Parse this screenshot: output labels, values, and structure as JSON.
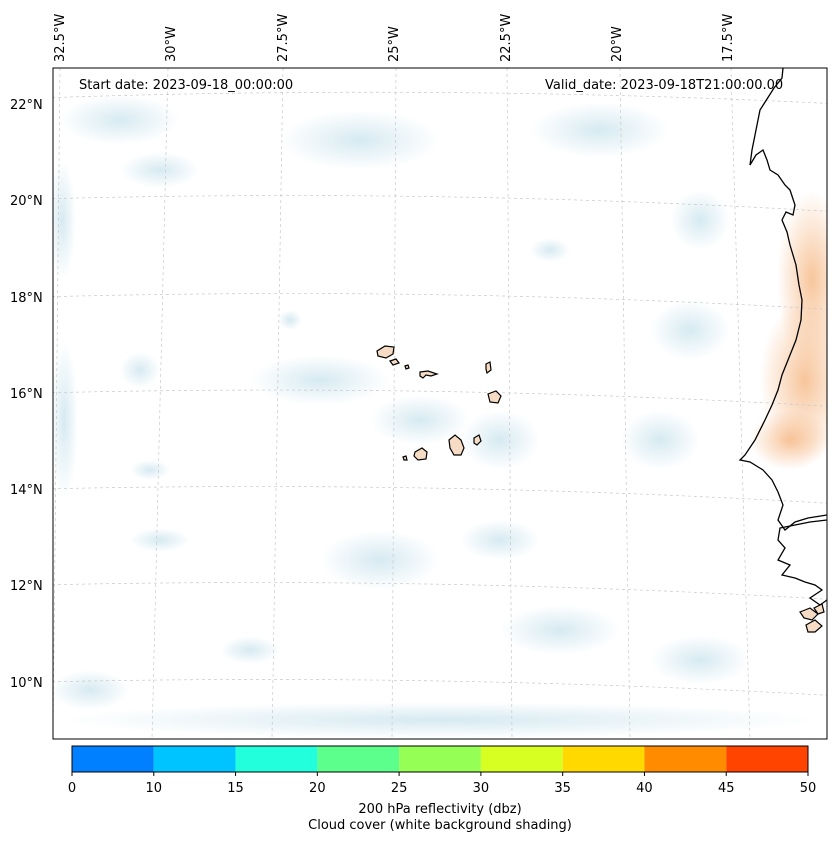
{
  "map": {
    "start_date": "Start date: 2023-09-18_00:00:00",
    "valid_date": "Valid_date: 2023-09-18T21:00:00.00",
    "lon_labels": [
      "32.5°W",
      "30°W",
      "27.5°W",
      "25°W",
      "22.5°W",
      "20°W",
      "17.5°W"
    ],
    "lat_labels": [
      "22°N",
      "20°N",
      "18°N",
      "16°N",
      "14°N",
      "12°N",
      "10°N"
    ]
  },
  "colorbar": {
    "ticks": [
      "0",
      "10",
      "15",
      "20",
      "25",
      "30",
      "35",
      "40",
      "45",
      "50"
    ],
    "colors": [
      "#0080ff",
      "#00c4ff",
      "#22ffdd",
      "#5cff8c",
      "#96ff55",
      "#d8ff22",
      "#ffd900",
      "#ff8c00",
      "#ff4400"
    ],
    "label_line1": "200 hPa reflectivity (dbz)",
    "label_line2": "Cloud cover (white background shading)"
  }
}
